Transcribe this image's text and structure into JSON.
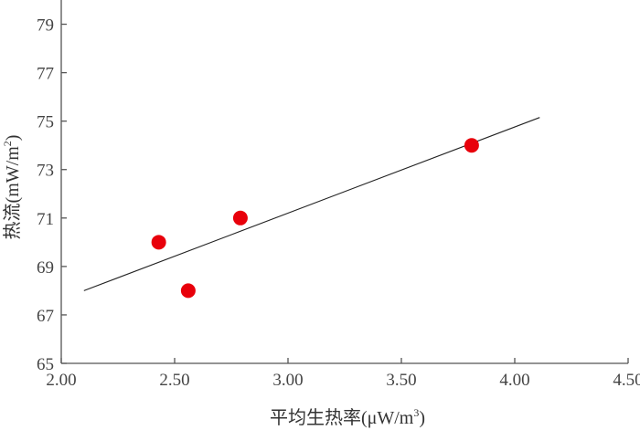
{
  "chart_data": {
    "type": "scatter",
    "title": "",
    "xlabel": "平均生热率(μW/m",
    "xlabel_sup": "3",
    "xlabel_tail": ")",
    "ylabel": "热流(mW/m",
    "ylabel_sup": "2",
    "ylabel_tail": ")",
    "xlim": [
      2.0,
      4.5
    ],
    "ylim": [
      65,
      80
    ],
    "x_ticks": [
      "2.00",
      "2.50",
      "3.00",
      "3.50",
      "4.00",
      "4.50"
    ],
    "y_ticks": [
      "65",
      "67",
      "69",
      "71",
      "73",
      "75",
      "77",
      "79"
    ],
    "grid": false,
    "series": [
      {
        "points": [
          {
            "x": 2.43,
            "y": 70
          },
          {
            "x": 2.56,
            "y": 68
          },
          {
            "x": 2.79,
            "y": 71
          },
          {
            "x": 3.81,
            "y": 74
          }
        ],
        "color": "#e8000b"
      }
    ],
    "trendline": {
      "x": [
        2.1,
        4.11
      ],
      "y": [
        68.0,
        75.15
      ],
      "color": "#222222"
    }
  }
}
